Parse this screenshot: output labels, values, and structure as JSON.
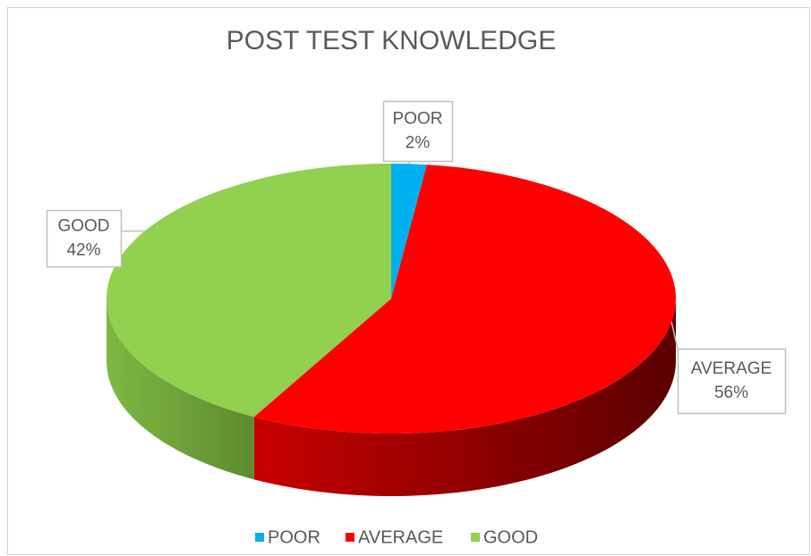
{
  "chart_data": {
    "type": "pie",
    "title": "POST TEST KNOWLEDGE",
    "categories": [
      "POOR",
      "AVERAGE",
      "GOOD"
    ],
    "values": [
      2,
      56,
      42
    ],
    "value_labels": [
      "2%",
      "56%",
      "42%"
    ],
    "colors": [
      "#00b0f0",
      "#ff0000",
      "#92d050"
    ],
    "legend": "bottom"
  }
}
